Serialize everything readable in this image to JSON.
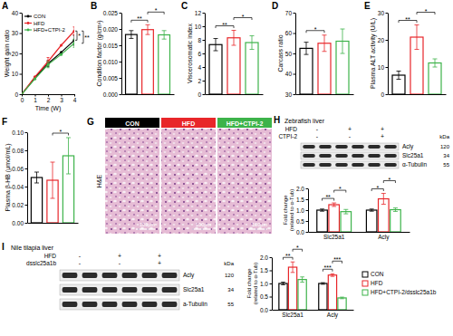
{
  "chart_data": [
    {
      "panel": "A",
      "type": "line",
      "x_label": "Time (W)",
      "y_label": "Weight gain ratio",
      "x": [
        0,
        1,
        2,
        3,
        4
      ],
      "xlim": [
        0,
        4
      ],
      "xticks": [
        0,
        1,
        2,
        3,
        4
      ],
      "ylim": [
        0,
        40
      ],
      "yticks": [
        0,
        10,
        20,
        30,
        40
      ],
      "legend": "upper left",
      "series": [
        {
          "name": "CON",
          "color": "#000000",
          "values": [
            0,
            8,
            15,
            20.5,
            26.5
          ],
          "errors": [
            null,
            null,
            1.5,
            null,
            2.5
          ]
        },
        {
          "name": "HFD",
          "color": "#e8262a",
          "values": [
            0,
            8.5,
            16,
            24,
            31
          ],
          "errors": [
            null,
            null,
            2,
            null,
            2
          ]
        },
        {
          "name": "HFD+CTPI-2",
          "color": "#3db34a",
          "values": [
            0,
            7.5,
            14.5,
            19.5,
            25
          ],
          "errors": [
            null,
            null,
            1.5,
            null,
            2
          ]
        }
      ],
      "annotations": [
        {
          "text": "*",
          "between": [
            1,
            0
          ]
        },
        {
          "text": "**",
          "between": [
            1,
            2
          ]
        }
      ]
    },
    {
      "panel": "B",
      "type": "bar",
      "y_label": "Condition factor (g/cm³)",
      "categories": [
        null,
        null,
        null
      ],
      "values": [
        0.0183,
        0.0198,
        0.0182
      ],
      "errors": [
        0.0012,
        0.0015,
        0.0013
      ],
      "colors": [
        "#000000",
        "#e8262a",
        "#3db34a"
      ],
      "ylim": [
        0,
        0.025
      ],
      "yticks": [
        {
          "value": 0,
          "label": "0.000"
        },
        {
          "value": 0.005,
          "label": "0.005"
        },
        {
          "value": 0.01,
          "label": "0.010"
        },
        {
          "value": 0.015,
          "label": "0.015"
        },
        {
          "value": 0.02,
          "label": "0.020"
        },
        {
          "value": 0.025,
          "label": "0.025"
        }
      ],
      "tick_labels": "y",
      "annotations": [
        {
          "text": "**",
          "between": [
            0,
            1
          ]
        },
        {
          "text": "*",
          "between": [
            1,
            2
          ]
        }
      ]
    },
    {
      "panel": "C",
      "type": "bar",
      "y_label": "Viscerosomatic index",
      "categories": [
        null,
        null,
        null
      ],
      "values": [
        7.3,
        8.3,
        7.6
      ],
      "errors": [
        0.9,
        1.1,
        1.0
      ],
      "colors": [
        "#000000",
        "#e8262a",
        "#3db34a"
      ],
      "ylim": [
        0,
        12
      ],
      "yticks": [
        0,
        2,
        4,
        6,
        8,
        10,
        12
      ],
      "tick_labels": "y",
      "annotations": [
        {
          "text": "**",
          "between": [
            0,
            1
          ]
        },
        {
          "text": "*",
          "between": [
            1,
            2
          ]
        }
      ]
    },
    {
      "panel": "D",
      "type": "bar",
      "y_label": "Carcass ratio",
      "categories": [
        null,
        null,
        null
      ],
      "values": [
        52.5,
        55,
        56
      ],
      "errors": [
        3,
        4,
        6
      ],
      "colors": [
        "#000000",
        "#e8262a",
        "#3db34a"
      ],
      "ylim": [
        30,
        70
      ],
      "yticks": [
        30,
        40,
        50,
        60,
        70
      ],
      "tick_labels": "y",
      "annotations": [
        {
          "text": "*",
          "between": [
            0,
            1
          ]
        }
      ]
    },
    {
      "panel": "E",
      "type": "bar",
      "y_label": "Plasma ALT activity (U/L)",
      "categories": [
        null,
        null,
        null
      ],
      "values": [
        7,
        21,
        11.5
      ],
      "errors": [
        1.5,
        4.5,
        1.5
      ],
      "colors": [
        "#000000",
        "#e8262a",
        "#3db34a"
      ],
      "ylim": [
        0,
        30
      ],
      "yticks": [
        0,
        10,
        20,
        30
      ],
      "tick_labels": "y",
      "annotations": [
        {
          "text": "**",
          "between": [
            0,
            1
          ]
        },
        {
          "text": "*",
          "between": [
            1,
            2
          ]
        }
      ]
    },
    {
      "panel": "F",
      "type": "bar",
      "y_label": "Plasma β-HB (μmol/mL)",
      "categories": [
        null,
        null,
        null
      ],
      "values": [
        0.05,
        0.047,
        0.074
      ],
      "errors": [
        0.006,
        0.02,
        0.02
      ],
      "colors": [
        "#000000",
        "#e8262a",
        "#3db34a"
      ],
      "ylim": [
        0,
        0.1
      ],
      "yticks": [
        {
          "value": 0,
          "label": "0.00"
        },
        {
          "value": 0.02,
          "label": "0.02"
        },
        {
          "value": 0.04,
          "label": "0.04"
        },
        {
          "value": 0.06,
          "label": "0.06"
        },
        {
          "value": 0.08,
          "label": "0.08"
        },
        {
          "value": 0.1,
          "label": "0.10"
        }
      ],
      "tick_labels": "y",
      "annotations": [
        {
          "text": "*",
          "between": [
            1,
            2
          ]
        }
      ]
    },
    {
      "type": "bar",
      "y_label": "Fold change (related to α-Tub)",
      "categories": [
        "Slc25a1",
        "Acly"
      ],
      "ylim": [
        0,
        2
      ],
      "yticks": [
        {
          "value": 0,
          "label": "0.0"
        },
        {
          "value": 0.5,
          "label": "0.5"
        },
        {
          "value": 1,
          "label": "1.0"
        },
        {
          "value": 1.5,
          "label": "1.5"
        },
        {
          "value": 2,
          "label": "2.0"
        }
      ],
      "series": [
        {
          "color": "#000000",
          "values": [
            1,
            1
          ],
          "errors": [
            0.05,
            0.05
          ]
        },
        {
          "color": "#e8262a",
          "values": [
            1.25,
            1.52
          ],
          "errors": [
            0.08,
            0.25
          ]
        },
        {
          "color": "#3db34a",
          "values": [
            0.93,
            1.02
          ],
          "errors": [
            0.1,
            0.08
          ]
        }
      ],
      "annotations": [
        {
          "text": "**",
          "category": 0,
          "between": [
            0,
            1
          ]
        },
        {
          "text": "*",
          "category": 0,
          "between": [
            1,
            2
          ]
        },
        {
          "text": "*",
          "category": 1,
          "between": [
            0,
            1
          ]
        },
        {
          "text": "*",
          "category": 1,
          "between": [
            1,
            2
          ]
        }
      ]
    },
    {
      "type": "bar",
      "y_label": "Fold change (related to α-Tub)",
      "categories": [
        "Slc25a1",
        "Acly"
      ],
      "ylim": [
        0,
        2
      ],
      "legend": "right",
      "yticks": [
        {
          "value": 0,
          "label": "0.0"
        },
        {
          "value": 0.5,
          "label": "0.5"
        },
        {
          "value": 1,
          "label": "1.0"
        },
        {
          "value": 1.5,
          "label": "1.5"
        },
        {
          "value": 2,
          "label": "2.0"
        }
      ],
      "series": [
        {
          "name": "CON",
          "color": "#000000",
          "values": [
            1,
            1
          ],
          "errors": [
            0.05,
            0.03
          ]
        },
        {
          "name": "HFD",
          "color": "#e8262a",
          "values": [
            1.62,
            1.32
          ],
          "errors": [
            0.2,
            0.05
          ]
        },
        {
          "name": "HFD+CTPI-2/dsslc25a1b",
          "color": "#3db34a",
          "values": [
            1.15,
            0.45
          ],
          "errors": [
            0.1,
            0.03
          ]
        }
      ],
      "annotations": [
        {
          "text": "**",
          "category": 0,
          "between": [
            0,
            1
          ]
        },
        {
          "text": "*",
          "category": 0,
          "between": [
            1,
            2
          ]
        },
        {
          "text": "***",
          "category": 1,
          "between": [
            0,
            1
          ]
        },
        {
          "text": "***",
          "category": 1,
          "between": [
            1,
            2
          ]
        }
      ]
    }
  ],
  "histology": {
    "panel": "G",
    "stain": "H&E",
    "columns": [
      {
        "label": "CON",
        "color": "#000000"
      },
      {
        "label": "HFD",
        "color": "#e8262a"
      },
      {
        "label": "HFD+CTPI-2",
        "color": "#3db34a"
      }
    ],
    "scale_bar": "100μm"
  },
  "blots": [
    {
      "panel": "H",
      "title": "Zebrafish liver",
      "conditions": [
        {
          "label": "HFD",
          "signs": [
            "-",
            "+",
            "+"
          ]
        },
        {
          "label": "CTPI-2",
          "signs": [
            "-",
            "-",
            "+"
          ]
        }
      ],
      "proteins": [
        "Acly",
        "Slc25a1",
        "α-Tubulin"
      ],
      "markers": [
        120,
        34,
        55
      ],
      "unit": "kDa"
    },
    {
      "panel": "I",
      "title": "Nile tilapia liver",
      "conditions": [
        {
          "label": "HFD",
          "signs": [
            "-",
            "+",
            "+"
          ]
        },
        {
          "label": "dsslc25a1b",
          "signs": [
            "-",
            "-",
            "+"
          ]
        }
      ],
      "proteins": [
        "Acly",
        "Slc25a1",
        "a-Tubulin"
      ],
      "markers": [
        120,
        34,
        55
      ],
      "unit": "kDa"
    }
  ]
}
